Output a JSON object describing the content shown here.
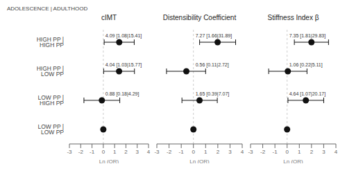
{
  "chart_data": [
    {
      "type": "forest",
      "title": "cIMT",
      "xlabel": "Ln (OR)",
      "ylabel": "ADOLESCENCE | ADULTHOOD",
      "categories": [
        "HIGH PP | HIGH PP",
        "HIGH PP | LOW PP",
        "LOW PP | HIGH PP",
        "LOW PP | LOW PP"
      ],
      "values": [
        1.408,
        1.396,
        -0.128,
        0.0
      ],
      "ci_low": [
        0.077,
        0.03,
        -1.715,
        null
      ],
      "ci_high": [
        2.736,
        2.757,
        1.457,
        null
      ],
      "annotations": [
        "4.09 [1.08|15.41]",
        "4.04 [1.03|15.77]",
        "0.88 [0.18|4.29]",
        null
      ],
      "ref_x": 0,
      "xlim": [
        -3,
        4
      ],
      "xticks": [
        -3,
        -2,
        -1,
        0,
        1,
        2,
        3,
        4
      ],
      "color": "#111111"
    },
    {
      "type": "forest",
      "title": "Distensibility Coefficient",
      "xlabel": "Ln (OR)",
      "categories": [
        "HIGH PP | HIGH PP",
        "HIGH PP | LOW PP",
        "LOW PP | HIGH PP",
        "LOW PP | LOW PP"
      ],
      "values": [
        1.984,
        -0.58,
        0.501,
        0.0
      ],
      "ci_low": [
        0.507,
        -2.207,
        -0.942,
        null
      ],
      "ci_high": [
        3.461,
        1.001,
        1.957,
        null
      ],
      "annotations": [
        "7.27 [1.66|31.89]",
        "0.56 [0.11|2.72]",
        "1.65 [0.39|7.07]",
        null
      ],
      "ref_x": 0,
      "xlim": [
        -3,
        4
      ],
      "xticks": [
        -3,
        -2,
        -1,
        0,
        1,
        2,
        3,
        4
      ],
      "color": "#111111",
      "tick_labels": "x"
    },
    {
      "type": "forest",
      "title": "Stiffness Index β",
      "xlabel": "Ln (OR)",
      "categories": [
        "HIGH PP | HIGH PP",
        "HIGH PP | LOW PP",
        "LOW PP | HIGH PP",
        "LOW PP | LOW PP"
      ],
      "values": [
        1.995,
        0.058,
        1.535,
        0.0
      ],
      "ci_low": [
        0.593,
        -1.514,
        0.068,
        null
      ],
      "ci_high": [
        3.396,
        1.631,
        3.003,
        null
      ],
      "annotations": [
        "7.35 [1.81|29.83]",
        "1.06 [0.22|5.11]",
        "4.64 [1.07|20.17]",
        null
      ],
      "ref_x": 0,
      "xlim": [
        -3,
        4
      ],
      "xticks": [
        -3,
        -2,
        -1,
        0,
        1,
        2,
        3,
        4
      ],
      "color": "#111111",
      "tick_labels": "x"
    }
  ]
}
